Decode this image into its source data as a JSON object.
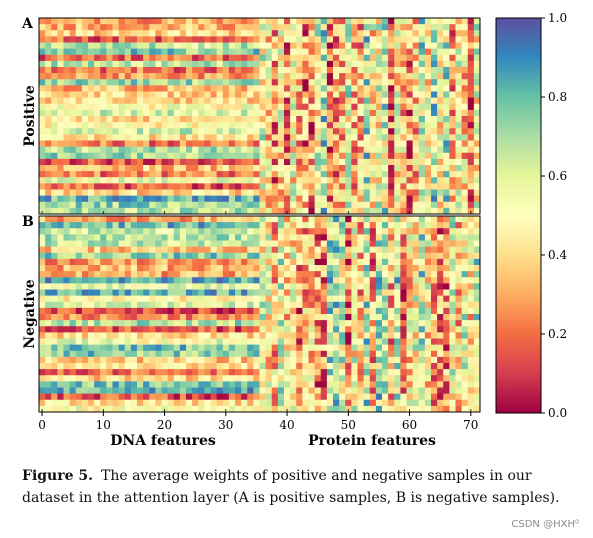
{
  "chart_data": {
    "type": "heatmap",
    "colormap": "Spectral",
    "panels": [
      {
        "panel_label": "A",
        "ylabel": "Positive",
        "rows": 32,
        "cols": 72,
        "seed": 11
      },
      {
        "panel_label": "B",
        "ylabel": "Negative",
        "rows": 32,
        "cols": 72,
        "seed": 29
      }
    ],
    "dna_feature_count": 36,
    "protein_feature_count": 36,
    "x_ticks": [
      0,
      10,
      20,
      30,
      40,
      50,
      60,
      70
    ],
    "x_group_labels": [
      "DNA features",
      "Protein features"
    ],
    "colorbar": {
      "range": [
        0.0,
        1.0
      ],
      "ticks": [
        "0.0",
        "0.2",
        "0.4",
        "0.6",
        "0.8",
        "1.0"
      ]
    }
  },
  "caption": {
    "label": "Figure 5.",
    "text": "The average weights of positive and negative samples in our dataset in the attention layer (A is positive samples, B is negative samples)."
  },
  "watermark": "CSDN @HXH⁰"
}
